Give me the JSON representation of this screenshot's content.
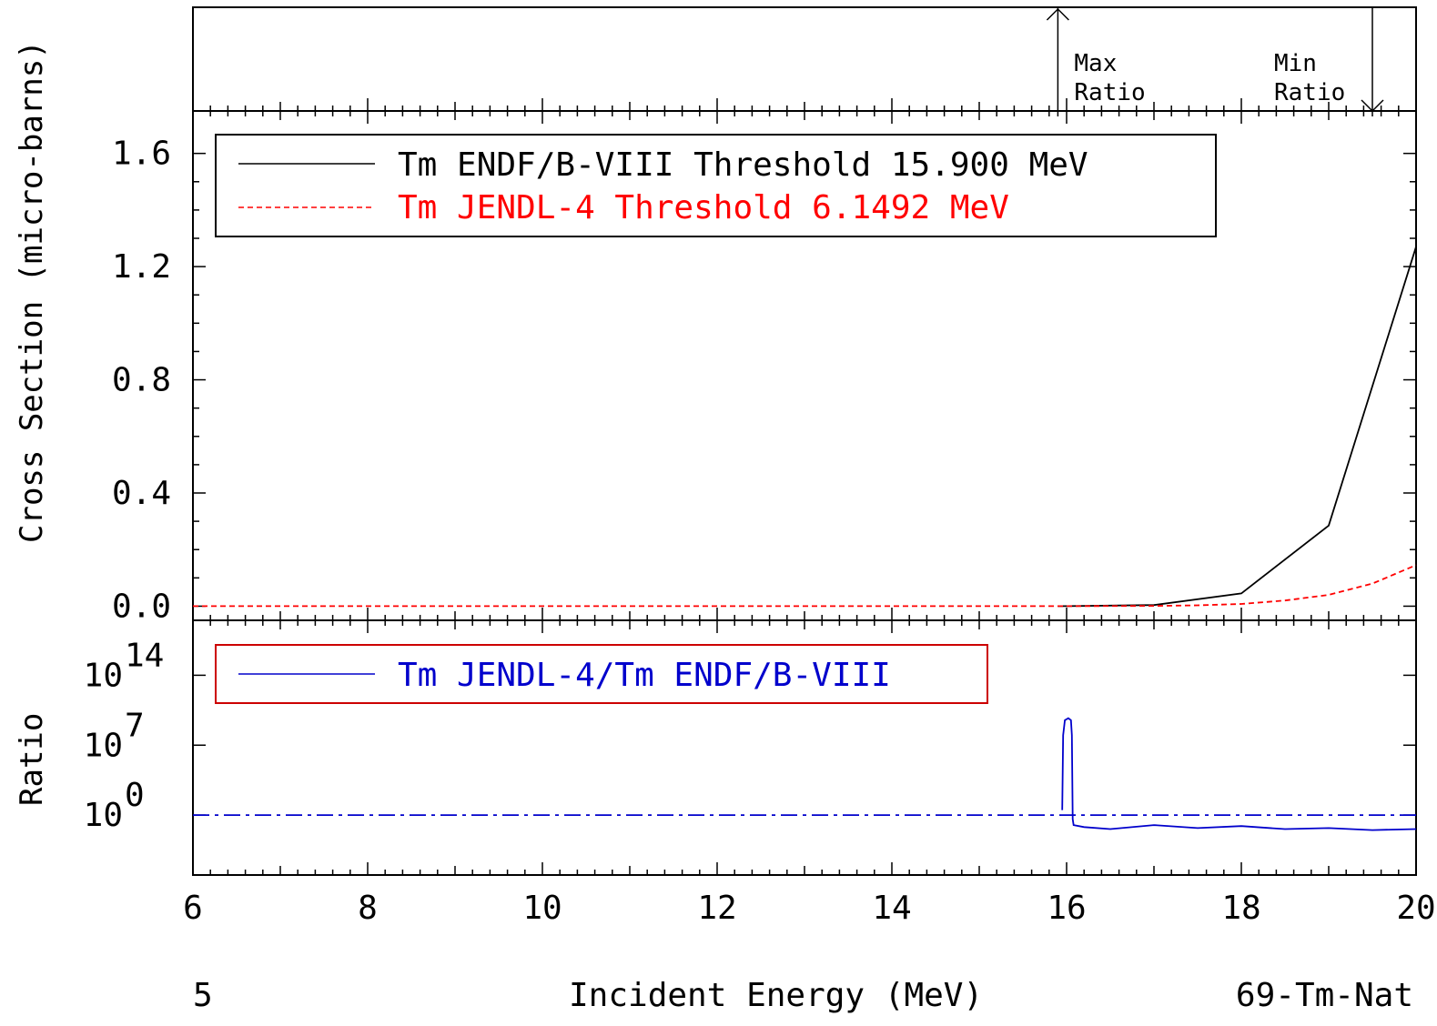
{
  "chart_data": [
    {
      "panel": "top",
      "type": "annotation",
      "markers": [
        {
          "x": 15.9,
          "direction": "up",
          "label_line1": "Max",
          "label_line2": "Ratio"
        },
        {
          "x": 19.5,
          "direction": "down",
          "label_line1": "Min",
          "label_line2": "Ratio"
        }
      ]
    },
    {
      "panel": "cross-section",
      "type": "line",
      "ylabel": "Cross Section (micro-barns)",
      "xlim": [
        6,
        20
      ],
      "ylim": [
        -0.05,
        1.75
      ],
      "yticks": [
        {
          "v": 0.0,
          "label": "0.0"
        },
        {
          "v": 0.4,
          "label": "0.4"
        },
        {
          "v": 0.8,
          "label": "0.8"
        },
        {
          "v": 1.2,
          "label": "1.2"
        },
        {
          "v": 1.6,
          "label": "1.6"
        }
      ],
      "series": [
        {
          "name": "Tm ENDF/B-VIII Threshold 15.900 MeV",
          "color": "#000000",
          "dash": "solid",
          "x": [
            15.9,
            16.0,
            17.0,
            18.0,
            19.0,
            20.0
          ],
          "y": [
            0.0,
            0.0,
            0.004,
            0.045,
            0.285,
            1.27
          ]
        },
        {
          "name": "Tm JENDL-4 Threshold 6.1492 MeV",
          "color": "#ff0000",
          "dash": "dashed",
          "x": [
            6.0,
            15.0,
            16.0,
            17.0,
            17.5,
            18.0,
            18.5,
            19.0,
            19.5,
            20.0
          ],
          "y": [
            0.0,
            0.0,
            0.0,
            0.001,
            0.003,
            0.008,
            0.02,
            0.04,
            0.08,
            0.145
          ]
        }
      ]
    },
    {
      "panel": "ratio",
      "type": "line",
      "ylabel": "Ratio",
      "yscale": "log",
      "yticks": [
        {
          "base": "10",
          "exp": "0",
          "v": 0
        },
        {
          "base": "10",
          "exp": "7",
          "v": 7
        },
        {
          "base": "10",
          "exp": "14",
          "v": 14
        }
      ],
      "ylim_log10": [
        -6,
        19.5
      ],
      "reference_line": {
        "y": 1,
        "style": "dash-dot",
        "color": "#0000cc"
      },
      "series": [
        {
          "name": "Tm JENDL-4/Tm ENDF/B-VIII",
          "color": "#0000cc",
          "x": [
            15.95,
            15.96,
            15.98,
            16.02,
            16.05,
            16.06,
            16.07,
            16.08,
            16.2,
            16.5,
            17.0,
            17.5,
            18.0,
            18.5,
            19.0,
            19.5,
            20.0
          ],
          "y_log10": [
            0.5,
            8.0,
            9.5,
            9.7,
            9.5,
            8.0,
            -0.4,
            -1.0,
            -1.2,
            -1.4,
            -1.0,
            -1.3,
            -1.1,
            -1.4,
            -1.3,
            -1.5,
            -1.4
          ]
        }
      ]
    }
  ],
  "xaxis": {
    "label": "Incident Energy (MeV)",
    "ticks": [
      {
        "v": 6,
        "label": "6"
      },
      {
        "v": 8,
        "label": "8"
      },
      {
        "v": 10,
        "label": "10"
      },
      {
        "v": 12,
        "label": "12"
      },
      {
        "v": 14,
        "label": "14"
      },
      {
        "v": 16,
        "label": "16"
      },
      {
        "v": 18,
        "label": "18"
      },
      {
        "v": 20,
        "label": "20"
      }
    ]
  },
  "footer": {
    "left": "5",
    "right": "69-Tm-Nat"
  }
}
